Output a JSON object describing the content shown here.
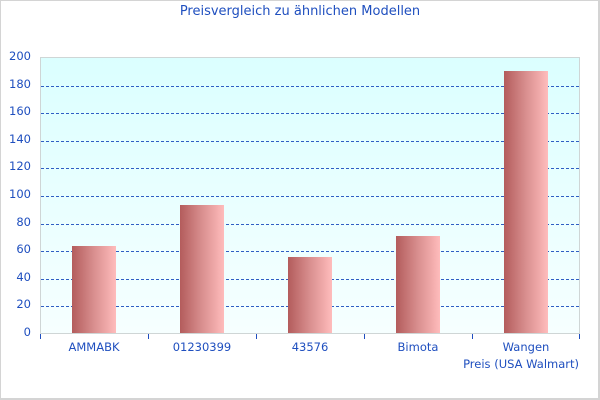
{
  "chart_data": {
    "type": "bar",
    "title": "Preisvergleich zu ähnlichen Modellen",
    "categories": [
      "AMMABK",
      "01230399",
      "43576",
      "Bimota",
      "Wangen"
    ],
    "series": [
      {
        "name": "Preis (USA Walmart)",
        "values": [
          63,
          93,
          55,
          70,
          190
        ],
        "color": "#d58a8a"
      }
    ],
    "xlabel": "",
    "ylabel": "",
    "ylim": [
      0,
      200
    ],
    "yticks": [
      "0",
      "20",
      "40",
      "60",
      "80",
      "100",
      "120",
      "140",
      "160",
      "180",
      "200"
    ],
    "grid": true,
    "legend_position": "bottom-right"
  },
  "colors": {
    "text": "#1f4fbf",
    "plot_bg_top": "#dbffff",
    "grid": "#2f5fc4",
    "bar_dark": "#b35c5c",
    "bar_light": "#ffbcbc"
  }
}
